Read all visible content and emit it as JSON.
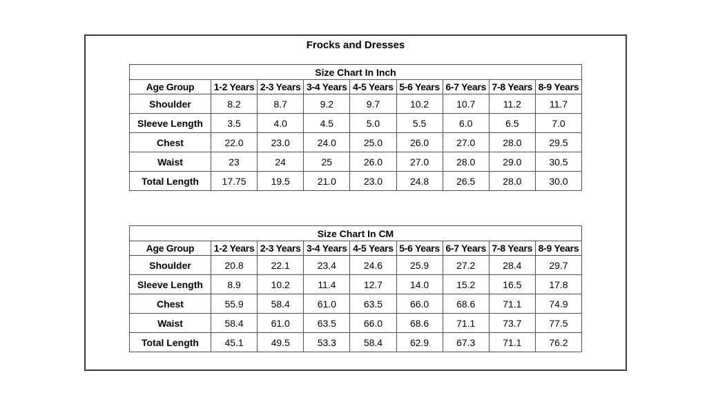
{
  "page_title": "Frocks and Dresses",
  "colors": {
    "frame_border": "#3c3c3c",
    "table_border": "#4f4f4f",
    "text": "#000000",
    "background": "#ffffff"
  },
  "tables": [
    {
      "title": "Size Chart In Inch",
      "columns": [
        "Age Group",
        "1-2 Years",
        "2-3 Years",
        "3-4 Years",
        "4-5 Years",
        "5-6 Years",
        "6-7 Years",
        "7-8 Years",
        "8-9 Years"
      ],
      "rows": [
        {
          "label": "Shoulder",
          "values": [
            "8.2",
            "8.7",
            "9.2",
            "9.7",
            "10.2",
            "10.7",
            "11.2",
            "11.7"
          ]
        },
        {
          "label": "Sleeve Length",
          "values": [
            "3.5",
            "4.0",
            "4.5",
            "5.0",
            "5.5",
            "6.0",
            "6.5",
            "7.0"
          ]
        },
        {
          "label": "Chest",
          "values": [
            "22.0",
            "23.0",
            "24.0",
            "25.0",
            "26.0",
            "27.0",
            "28.0",
            "29.5"
          ]
        },
        {
          "label": "Waist",
          "values": [
            "23",
            "24",
            "25",
            "26.0",
            "27.0",
            "28.0",
            "29.0",
            "30.5"
          ]
        },
        {
          "label": "Total Length",
          "values": [
            "17.75",
            "19.5",
            "21.0",
            "23.0",
            "24.8",
            "26.5",
            "28.0",
            "30.0"
          ]
        }
      ]
    },
    {
      "title": "Size Chart In CM",
      "columns": [
        "Age Group",
        "1-2 Years",
        "2-3 Years",
        "3-4 Years",
        "4-5 Years",
        "5-6 Years",
        "6-7 Years",
        "7-8 Years",
        "8-9 Years"
      ],
      "rows": [
        {
          "label": "Shoulder",
          "values": [
            "20.8",
            "22.1",
            "23.4",
            "24.6",
            "25.9",
            "27.2",
            "28.4",
            "29.7"
          ]
        },
        {
          "label": "Sleeve Length",
          "values": [
            "8.9",
            "10.2",
            "11.4",
            "12.7",
            "14.0",
            "15.2",
            "16.5",
            "17.8"
          ]
        },
        {
          "label": "Chest",
          "values": [
            "55.9",
            "58.4",
            "61.0",
            "63.5",
            "66.0",
            "68.6",
            "71.1",
            "74.9"
          ]
        },
        {
          "label": "Waist",
          "values": [
            "58.4",
            "61.0",
            "63.5",
            "66.0",
            "68.6",
            "71.1",
            "73.7",
            "77.5"
          ]
        },
        {
          "label": "Total Length",
          "values": [
            "45.1",
            "49.5",
            "53.3",
            "58.4",
            "62.9",
            "67.3",
            "71.1",
            "76.2"
          ]
        }
      ]
    }
  ]
}
